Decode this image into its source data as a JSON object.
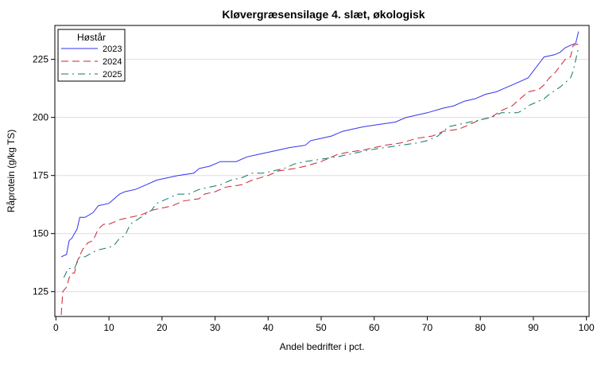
{
  "chart_data": {
    "type": "line",
    "title": "Kløvergræsensilage 4. slæt, økologisk",
    "xlabel": "Andel bedrifter i pct.",
    "ylabel": "Råprotein (g/kg TS)",
    "xlim": [
      -0.2,
      100.5
    ],
    "ylim": [
      114.3,
      239.6
    ],
    "xticks": [
      0,
      10,
      20,
      30,
      40,
      50,
      60,
      70,
      80,
      90,
      100
    ],
    "xtick_labels": [
      "0",
      "10",
      "20",
      "30",
      "40",
      "50",
      "60",
      "70",
      "80",
      "90",
      "100"
    ],
    "yticks": [
      125,
      150,
      175,
      200,
      225
    ],
    "ytick_labels": [
      "125",
      "150",
      "175",
      "200",
      "225"
    ],
    "grid": "horizontal",
    "legend": {
      "title": "Høstår",
      "placement": "top-left"
    },
    "series": [
      {
        "name": "2023",
        "color": "#3333ee",
        "dash": "solid",
        "x": [
          1,
          2,
          2.5,
          3,
          4,
          4.5,
          5.5,
          7,
          8,
          10,
          11,
          12,
          13,
          15,
          17,
          19,
          21,
          23,
          26,
          27,
          29,
          31,
          34,
          36,
          38,
          40,
          42,
          44,
          47,
          48,
          50,
          52,
          54,
          56,
          58,
          61,
          64,
          66,
          68,
          70,
          73,
          75,
          77,
          79,
          81,
          83,
          85,
          87,
          89,
          90,
          91,
          92,
          94,
          95,
          96,
          97,
          98,
          98.5
        ],
        "y": [
          140,
          141,
          147,
          148,
          152,
          157,
          157,
          159,
          162,
          163,
          165,
          167,
          168,
          169,
          171,
          173,
          174,
          175,
          176,
          178,
          179,
          181,
          181,
          183,
          184,
          185,
          186,
          187,
          188,
          190,
          191,
          192,
          194,
          195,
          196,
          197,
          198,
          200,
          201,
          202,
          204,
          205,
          207,
          208,
          210,
          211,
          213,
          215,
          217,
          220,
          223,
          226,
          227,
          228,
          230,
          231,
          232,
          237
        ]
      },
      {
        "name": "2024",
        "color": "#cc2233",
        "dash": "dashed",
        "x": [
          1,
          1.3,
          2,
          2.5,
          3,
          3.5,
          4,
          5,
          6,
          7,
          8,
          9,
          10,
          12,
          14,
          16,
          18,
          20,
          22,
          24,
          27,
          28,
          30,
          32,
          35,
          37,
          40,
          42,
          45,
          47,
          50,
          53,
          55,
          58,
          62,
          65,
          68,
          71,
          73,
          76,
          78,
          80,
          82,
          84,
          86,
          87,
          88,
          89,
          91,
          92,
          93,
          94,
          95,
          96,
          97,
          97.5,
          99
        ],
        "y": [
          115,
          125,
          127,
          131,
          133,
          133,
          138,
          143,
          146,
          147,
          152,
          154,
          154,
          156,
          157,
          158,
          160,
          161,
          162,
          164,
          165,
          167,
          168,
          170,
          171,
          173,
          175,
          177,
          178,
          179,
          181,
          184,
          185,
          186,
          188,
          189,
          191,
          192,
          194,
          195,
          197,
          199,
          200,
          203,
          205,
          207,
          209,
          211,
          212,
          214,
          217,
          219,
          222,
          225,
          226,
          231,
          232
        ]
      },
      {
        "name": "2025",
        "color": "#117766",
        "dash": "dash-dot",
        "x": [
          1.5,
          2.3,
          3,
          3.5,
          4.5,
          5.5,
          7,
          8,
          10,
          11,
          12,
          13,
          14,
          16,
          18,
          19,
          20,
          22,
          23,
          25,
          27,
          29,
          31,
          33,
          35,
          37,
          39,
          41,
          43,
          45,
          47,
          50,
          53,
          55,
          57,
          59,
          62,
          65,
          68,
          70,
          72,
          73,
          74,
          76,
          78,
          80,
          82,
          84,
          87,
          88,
          89,
          91,
          92,
          93,
          95,
          96,
          97,
          97.5,
          98.5
        ],
        "y": [
          131,
          135,
          135,
          135,
          140,
          140,
          142,
          143,
          144,
          145,
          148,
          149,
          154,
          157,
          160,
          163,
          164,
          166,
          167,
          167,
          169,
          170,
          171,
          173,
          174,
          176,
          176,
          177,
          178,
          180,
          181,
          182,
          183,
          184,
          185,
          186,
          187,
          188,
          189,
          190,
          192,
          194,
          196,
          197,
          198,
          199,
          200,
          202,
          202,
          203,
          205,
          207,
          208,
          210,
          213,
          215,
          217,
          220,
          230
        ]
      }
    ]
  }
}
